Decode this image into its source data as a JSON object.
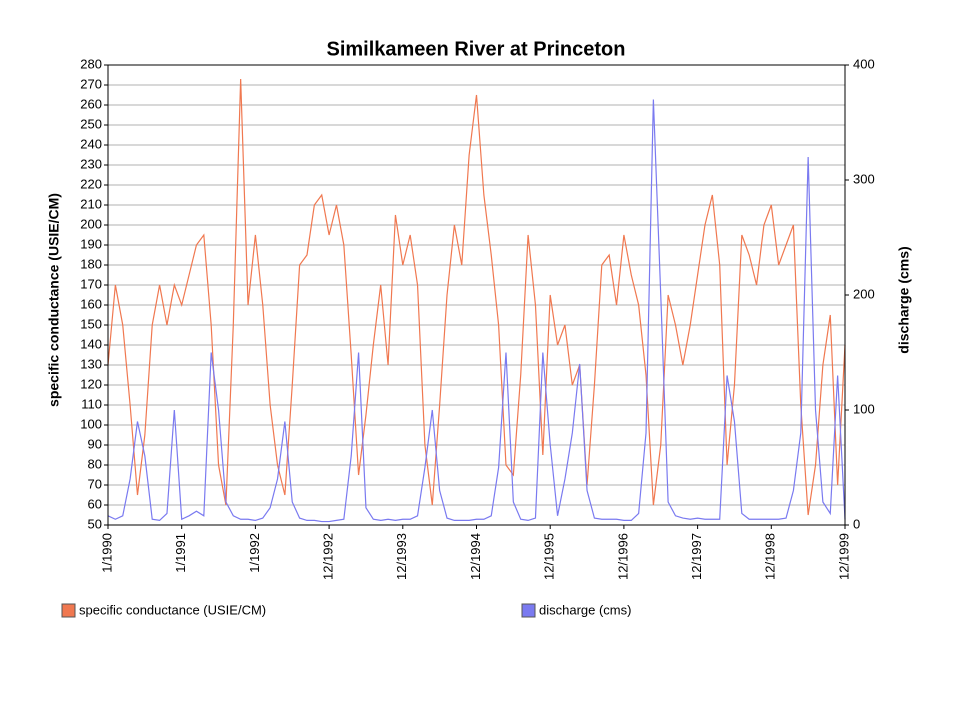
{
  "chart_data": {
    "type": "line",
    "title": "Similkameen River at Princeton",
    "y_label": "specific conductance (USIE/CM)",
    "y2_label": "discharge (cms)",
    "categories": [
      "1/1990",
      null,
      null,
      null,
      null,
      null,
      null,
      null,
      null,
      null,
      "1/1991",
      null,
      null,
      null,
      null,
      null,
      null,
      null,
      null,
      null,
      "1/1992",
      null,
      null,
      null,
      null,
      null,
      null,
      null,
      null,
      null,
      "12/1992",
      null,
      null,
      null,
      null,
      null,
      null,
      null,
      null,
      null,
      "12/1993",
      null,
      null,
      null,
      null,
      null,
      null,
      null,
      null,
      null,
      "12/1994",
      null,
      null,
      null,
      null,
      null,
      null,
      null,
      null,
      null,
      "12/1995",
      null,
      null,
      null,
      null,
      null,
      null,
      null,
      null,
      null,
      "12/1996",
      null,
      null,
      null,
      null,
      null,
      null,
      null,
      null,
      null,
      "12/1997",
      null,
      null,
      null,
      null,
      null,
      null,
      null,
      null,
      null,
      "12/1998",
      null,
      null,
      null,
      null,
      null,
      null,
      null,
      null,
      null,
      "12/1999"
    ],
    "series": [
      {
        "name": "specific conductance (USIE/CM)",
        "color": "#f07850",
        "axis": "y",
        "values": [
          130,
          170,
          150,
          110,
          65,
          95,
          150,
          170,
          150,
          170,
          160,
          175,
          190,
          195,
          150,
          80,
          60,
          150,
          273,
          160,
          195,
          160,
          110,
          80,
          65,
          120,
          180,
          185,
          210,
          215,
          195,
          210,
          190,
          135,
          75,
          105,
          140,
          170,
          130,
          205,
          180,
          195,
          170,
          90,
          60,
          110,
          165,
          200,
          180,
          235,
          265,
          215,
          185,
          150,
          80,
          75,
          125,
          195,
          160,
          85,
          165,
          140,
          150,
          120,
          130,
          70,
          120,
          180,
          185,
          160,
          195,
          175,
          160,
          125,
          60,
          90,
          165,
          150,
          130,
          150,
          175,
          200,
          215,
          180,
          80,
          120,
          195,
          185,
          170,
          200,
          210,
          180,
          190,
          200,
          110,
          55,
          80,
          130,
          155,
          70,
          140
        ]
      },
      {
        "name": "discharge (cms)",
        "color": "#7a7af0",
        "axis": "y2",
        "values": [
          8,
          5,
          8,
          40,
          90,
          60,
          5,
          4,
          10,
          100,
          5,
          8,
          12,
          8,
          150,
          100,
          20,
          8,
          5,
          5,
          4,
          6,
          15,
          40,
          90,
          20,
          6,
          4,
          4,
          3,
          3,
          4,
          5,
          60,
          150,
          15,
          5,
          4,
          5,
          4,
          5,
          5,
          8,
          50,
          100,
          30,
          6,
          4,
          4,
          4,
          5,
          5,
          8,
          50,
          150,
          20,
          5,
          4,
          6,
          150,
          70,
          8,
          40,
          80,
          140,
          30,
          6,
          5,
          5,
          5,
          4,
          4,
          10,
          80,
          370,
          200,
          20,
          8,
          6,
          5,
          6,
          5,
          5,
          5,
          130,
          90,
          10,
          5,
          5,
          5,
          5,
          5,
          6,
          30,
          80,
          320,
          100,
          20,
          10,
          130,
          5
        ]
      }
    ],
    "ylim": [
      50,
      280
    ],
    "yticks": [
      50,
      60,
      70,
      80,
      90,
      100,
      110,
      120,
      130,
      140,
      150,
      160,
      170,
      180,
      190,
      200,
      210,
      220,
      230,
      240,
      250,
      260,
      270,
      280
    ],
    "y2lim": [
      0,
      400
    ],
    "y2ticks": [
      0,
      100,
      200,
      300,
      400
    ],
    "grid": true
  }
}
